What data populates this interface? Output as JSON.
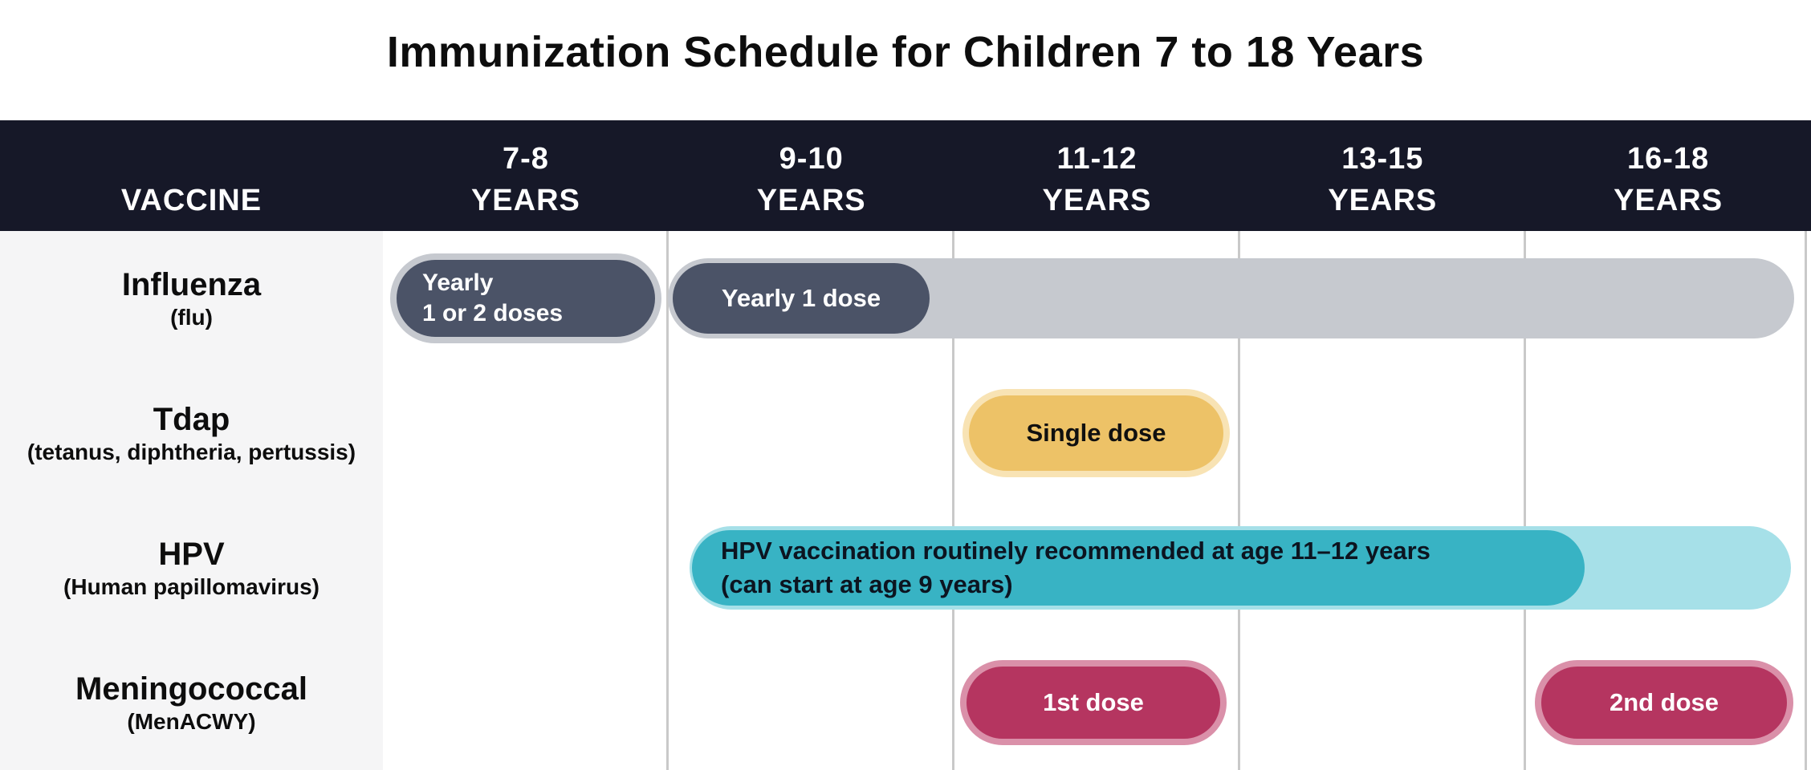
{
  "title": "Immunization Schedule for Children 7 to 18 Years",
  "header": {
    "vaccine_label": "VACCINE",
    "age_columns": [
      {
        "range": "7-8",
        "unit": "YEARS"
      },
      {
        "range": "9-10",
        "unit": "YEARS"
      },
      {
        "range": "11-12",
        "unit": "YEARS"
      },
      {
        "range": "13-15",
        "unit": "YEARS"
      },
      {
        "range": "16-18",
        "unit": "YEARS"
      }
    ]
  },
  "rows": [
    {
      "name": "Influenza",
      "subtitle": "(flu)"
    },
    {
      "name": "Tdap",
      "subtitle": "(tetanus, diphtheria, pertussis)"
    },
    {
      "name": "HPV",
      "subtitle": "(Human papillomavirus)"
    },
    {
      "name": "Meningococcal",
      "subtitle": "(MenACWY)"
    }
  ],
  "bars": {
    "influenza_first_line1": "Yearly",
    "influenza_first_line2": "1 or 2 doses",
    "influenza_yearly": "Yearly 1 dose",
    "tdap_single": "Single dose",
    "hpv_line1": "HPV vaccination routinely recommended at age 11–12 years",
    "hpv_line2": "(can start at age 9 years)",
    "mening_first": "1st dose",
    "mening_second": "2nd dose"
  },
  "colors": {
    "header_navy": "#161828",
    "label_column_bg": "#f5f5f6",
    "gridline": "#c9c9c9",
    "slate_pill": "#4b5367",
    "range_bar_gray": "#c6c9cf",
    "tdap_yellow": "#edc267",
    "tdap_yellow_halo": "#f8e3b4",
    "hpv_teal": "#38b3c4",
    "hpv_teal_light": "#a6e0e8",
    "mening_crimson": "#b53560",
    "mening_pink_halo": "#da90a9"
  },
  "chart_data": {
    "type": "table",
    "title": "Immunization Schedule for Children 7 to 18 Years",
    "columns": [
      "VACCINE",
      "7-8 YEARS",
      "9-10 YEARS",
      "11-12 YEARS",
      "13-15 YEARS",
      "16-18 YEARS"
    ],
    "rows": [
      {
        "vaccine": "Influenza (flu)",
        "entries": [
          {
            "ages": "7-8 years",
            "label": "Yearly 1 or 2 doses",
            "style": "dark slate pill"
          },
          {
            "ages": "9-10 through 16-18 years",
            "label": "Yearly 1 dose",
            "style": "dark slate pill on gray range bar spanning 9-18 years"
          }
        ]
      },
      {
        "vaccine": "Tdap (tetanus, diphtheria, pertussis)",
        "entries": [
          {
            "ages": "11-12 years",
            "label": "Single dose",
            "style": "yellow pill"
          }
        ]
      },
      {
        "vaccine": "HPV (Human papillomavirus)",
        "entries": [
          {
            "ages": "9-10 through 16-18 years",
            "label": "HPV vaccination routinely recommended at age 11–12 years (can start at age 9 years)",
            "style": "teal bar ending just past 13-15, with light-teal extension through 16-18"
          }
        ]
      },
      {
        "vaccine": "Meningococcal (MenACWY)",
        "entries": [
          {
            "ages": "11-12 years",
            "label": "1st dose",
            "style": "crimson pill"
          },
          {
            "ages": "16-18 years",
            "label": "2nd dose",
            "style": "crimson pill"
          }
        ]
      }
    ]
  }
}
